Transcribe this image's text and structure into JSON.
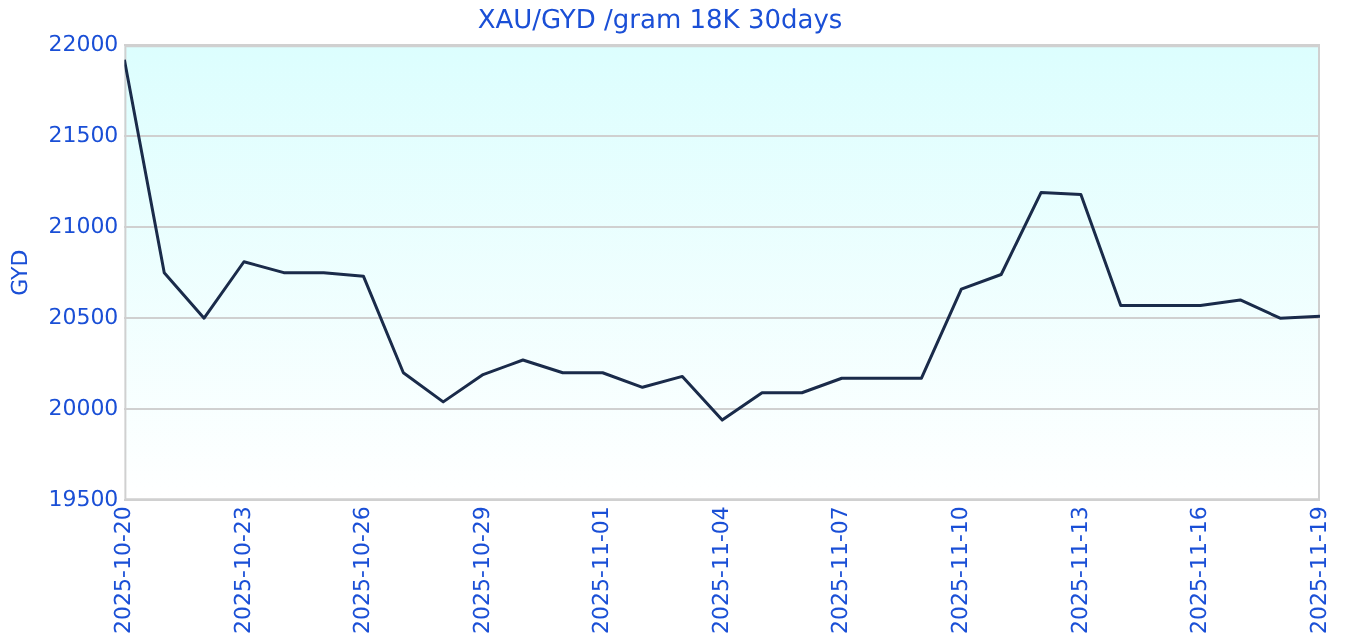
{
  "chart_data": {
    "type": "line",
    "title": "XAU/GYD /gram 18K 30days",
    "ylabel": "GYD",
    "x": [
      "2025-10-20",
      "2025-10-21",
      "2025-10-22",
      "2025-10-23",
      "2025-10-24",
      "2025-10-25",
      "2025-10-26",
      "2025-10-27",
      "2025-10-28",
      "2025-10-29",
      "2025-10-30",
      "2025-10-31",
      "2025-11-01",
      "2025-11-02",
      "2025-11-03",
      "2025-11-04",
      "2025-11-05",
      "2025-11-06",
      "2025-11-07",
      "2025-11-08",
      "2025-11-09",
      "2025-11-10",
      "2025-11-11",
      "2025-11-12",
      "2025-11-13",
      "2025-11-14",
      "2025-11-15",
      "2025-11-16",
      "2025-11-17",
      "2025-11-18",
      "2025-11-19"
    ],
    "series": [
      {
        "color": "#1a2b4a",
        "values": [
          21920,
          20750,
          20500,
          20810,
          20750,
          20750,
          20730,
          20200,
          20040,
          20190,
          20270,
          20200,
          20200,
          20120,
          20180,
          19940,
          20090,
          20090,
          20170,
          20170,
          20170,
          20660,
          20740,
          21190,
          21180,
          20570,
          20570,
          20570,
          20600,
          20500,
          20510
        ]
      }
    ],
    "xlim": [
      "2025-10-20",
      "2025-11-19"
    ],
    "xticks": [
      "2025-10-20",
      "2025-10-23",
      "2025-10-26",
      "2025-10-29",
      "2025-11-01",
      "2025-11-04",
      "2025-11-07",
      "2025-11-10",
      "2025-11-13",
      "2025-11-16",
      "2025-11-19"
    ],
    "ylim": [
      19500,
      22000
    ],
    "yticks": [
      19500,
      20000,
      20500,
      21000,
      21500,
      22000
    ],
    "grid": "y",
    "legend": false,
    "marker": "none",
    "line_style": "solid"
  }
}
